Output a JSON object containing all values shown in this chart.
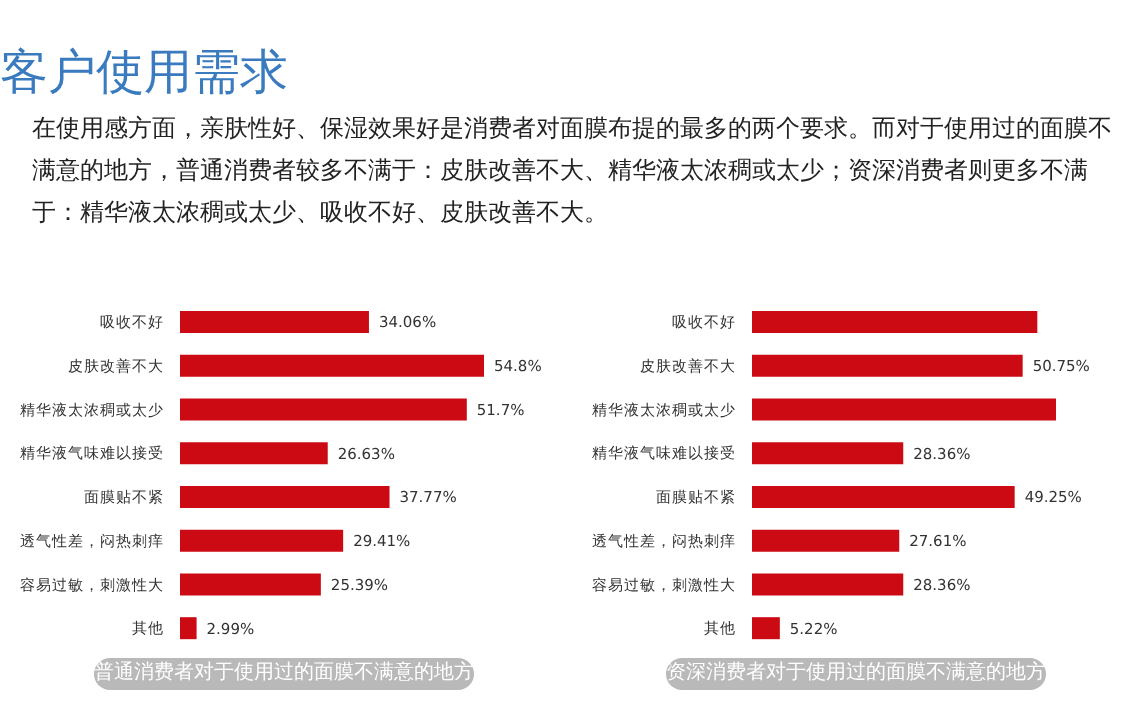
{
  "chart_data": [
    {
      "type": "other",
      "title": "客户使用需求",
      "annotations": [
        "在使用感方面，亲肤性好、保湿效果好是消费者对面膜布提的最多的两个要求。而对于使用过的面膜不满意的地方，普通消费者较多不满于：皮肤改善不大、精华液太浓稠或太少；资深消费者则更多不满于：精华液太浓稠或太少、吸收不好、皮肤改善不大。"
      ]
    },
    {
      "type": "bar",
      "orientation": "horizontal",
      "title": "普通消费者对于使用过的面膜不满意的地方",
      "categories": [
        "吸收不好",
        "皮肤改善不大",
        "精华液太浓稠或太少",
        "精华液气味难以接受",
        "面膜贴不紧",
        "透气性差，闷热刺痒",
        "容易过敏，刺激性大",
        "其他"
      ],
      "color": "#cc0a14",
      "values": [
        34.06,
        54.8,
        51.7,
        26.63,
        37.77,
        29.41,
        25.39,
        2.99
      ],
      "value_labels": [
        "34.06%",
        "54.8%",
        "51.7%",
        "26.63%",
        "37.77%",
        "29.41%",
        "25.39%",
        "2.99%"
      ]
    },
    {
      "type": "bar",
      "orientation": "horizontal",
      "title": "资深消费者对于使用过的面膜不满意的地方",
      "categories": [
        "吸收不好",
        "皮肤改善不大",
        "精华液太浓稠或太少",
        "精华液气味难以接受",
        "面膜贴不紧",
        "透气性差，闷热刺痒",
        "容易过敏，刺激性大",
        "其他"
      ],
      "color": "#cc0a14",
      "values": [
        53.5,
        50.75,
        57,
        28.36,
        49.25,
        27.61,
        28.36,
        5.22
      ],
      "value_labels": [
        null,
        "50.75%",
        null,
        "28.36%",
        "49.25%",
        "27.61%",
        "28.36%",
        "5.22%"
      ]
    }
  ]
}
